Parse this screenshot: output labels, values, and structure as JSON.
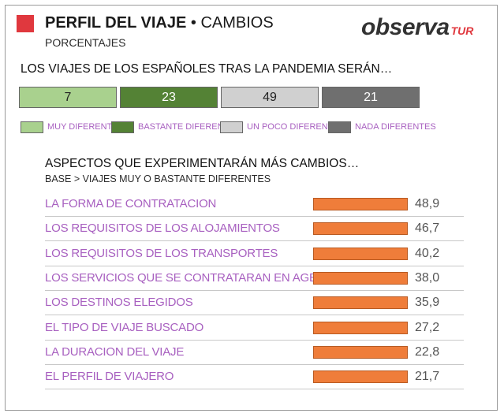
{
  "header": {
    "title_bold": "PERFIL DEL VIAJE",
    "title_sep": " • ",
    "title_light": "CAMBIOS",
    "subtitle": "PORCENTAJES",
    "logo_main": "observa",
    "logo_sub": "TUR"
  },
  "colors": {
    "accent_red": "#e0383e",
    "label_purple": "#a860c0",
    "bar_orange": "#ef7d3a"
  },
  "chart_data": [
    {
      "type": "bar",
      "orientation": "horizontal-stacked",
      "title": "LOS VIAJES DE LOS ESPAÑOLES TRAS LA PANDEMIA SERÁN…",
      "series": [
        {
          "name": "MUY DIFERENTES",
          "values": [
            7
          ],
          "color": "#a9d18e"
        },
        {
          "name": "BASTANTE DIFERENTES",
          "values": [
            23
          ],
          "color": "#548235"
        },
        {
          "name": "UN POCO DIFERENTES",
          "values": [
            49
          ],
          "color": "#d0d0d0"
        },
        {
          "name": "NADA DIFERENTES",
          "values": [
            21
          ],
          "color": "#6f6f6f"
        }
      ],
      "legend": "bottom"
    },
    {
      "type": "bar",
      "orientation": "horizontal",
      "title": "ASPECTOS QUE EXPERIMENTARÁN MÁS CAMBIOS…",
      "subtitle": "BASE > VIAJES MUY O BASTANTE DIFERENTES",
      "categories": [
        "LA FORMA DE CONTRATACION",
        "LOS REQUISITOS DE LOS ALOJAMIENTOS",
        "LOS REQUISITOS DE LOS TRANSPORTES",
        "LOS SERVICIOS QUE SE CONTRATARAN EN AGENCIAS",
        "LOS DESTINOS ELEGIDOS",
        "EL TIPO DE VIAJE BUSCADO",
        "LA DURACION DEL VIAJE",
        "EL PERFIL DE VIAJERO"
      ],
      "values": [
        48.9,
        46.7,
        40.2,
        38.0,
        35.9,
        27.2,
        22.8,
        21.7
      ],
      "value_labels": [
        "48,9",
        "46,7",
        "40,2",
        "38,0",
        "35,9",
        "27,2",
        "22,8",
        "21,7"
      ],
      "legend": "none",
      "grid": false
    }
  ]
}
